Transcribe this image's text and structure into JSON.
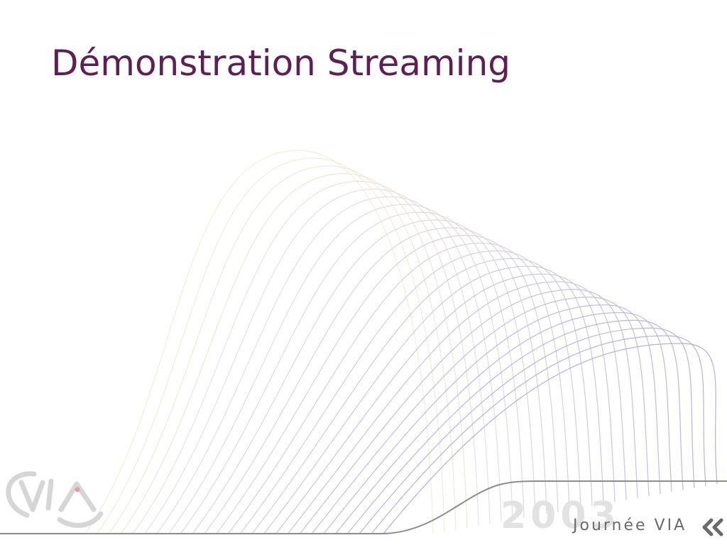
{
  "slide": {
    "title": "Démonstration Streaming"
  },
  "footer": {
    "year": "2003",
    "event": "Journée VIA",
    "logo_text": "VIA"
  },
  "colors": {
    "title": "#5e1f55",
    "wave_start": "#f3eedc",
    "wave_end": "#b6b0d6",
    "footer_line": "#8c8c8c",
    "year": "#e2e2e2",
    "event": "#6a6a6a",
    "logo": "#d6d6d6",
    "logo_dot": "#e69a9a"
  },
  "icons": [
    "wave-decoration",
    "via-logo",
    "double-chevron-left-icon"
  ]
}
